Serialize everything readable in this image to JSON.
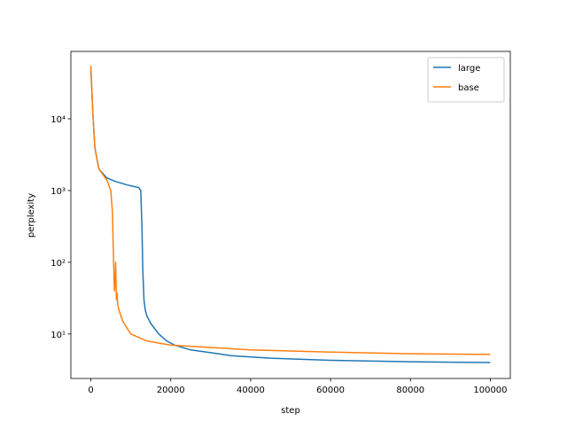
{
  "chart_data": {
    "type": "line",
    "xlabel": "step",
    "ylabel": "perplexity",
    "log_y": true,
    "legend": "upper right",
    "xlim": [
      -5000,
      105000
    ],
    "xticks": [
      0,
      20000,
      40000,
      60000,
      80000,
      100000
    ],
    "ylim": [
      2.4,
      87000
    ],
    "yticks": [
      {
        "value": 10,
        "label": "10¹"
      },
      {
        "value": 100,
        "label": "10²"
      },
      {
        "value": 1000,
        "label": "10³"
      },
      {
        "value": 10000,
        "label": "10⁴"
      }
    ],
    "series": [
      {
        "name": "large",
        "color": "#1f77b4",
        "x": [
          0,
          500,
          1000,
          2000,
          4000,
          6000,
          9000,
          12000,
          12500,
          12800,
          13000,
          13300,
          13600,
          14000,
          15000,
          17000,
          19000,
          21000,
          25000,
          30000,
          35000,
          45000,
          60000,
          80000,
          100000
        ],
        "values": [
          50000,
          12000,
          4000,
          2000,
          1500,
          1350,
          1200,
          1100,
          1000,
          300,
          80,
          30,
          22,
          18,
          14,
          10,
          8,
          7,
          6,
          5.5,
          5,
          4.6,
          4.3,
          4.1,
          4.0
        ]
      },
      {
        "name": "base",
        "color": "#ff7f0e",
        "x": [
          0,
          500,
          1000,
          2000,
          4000,
          5000,
          5400,
          5700,
          5900,
          6100,
          6200,
          6400,
          6600,
          6700,
          7000,
          8000,
          10000,
          14000,
          20000,
          30000,
          40000,
          60000,
          80000,
          100000
        ],
        "values": [
          55000,
          12000,
          4000,
          2000,
          1400,
          1000,
          500,
          100,
          40,
          60,
          100,
          30,
          37,
          26,
          22,
          15,
          10,
          8,
          7,
          6.5,
          6,
          5.6,
          5.3,
          5.2
        ]
      }
    ]
  }
}
